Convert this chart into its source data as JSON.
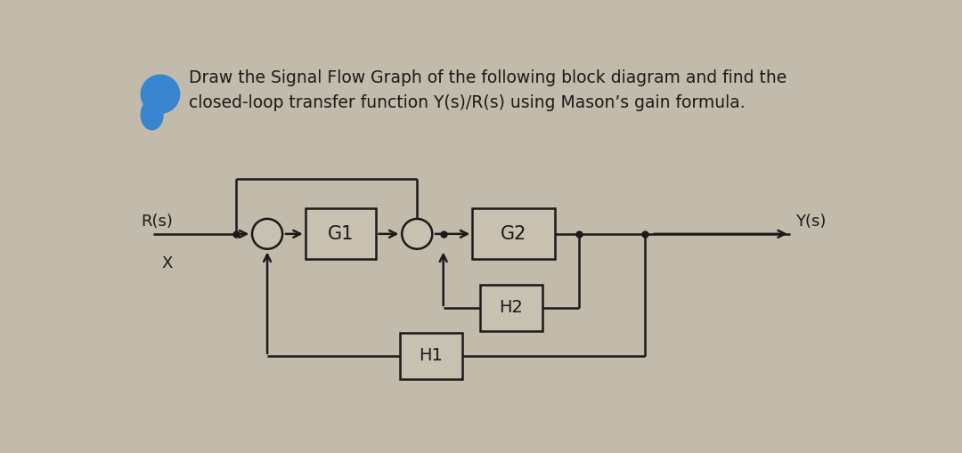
{
  "bg_color": "#c2baaa",
  "title_text": "Draw the Signal Flow Graph of the following block diagram and find the\nclosed-loop transfer function Y(s)/R(s) using Mason’s gain formula.",
  "title_fontsize": 13.5,
  "title_color": "#1a1a1a",
  "bullet_color": "#3a85d0",
  "Rs_label": "R(s)",
  "Ys_label": "Y(s)",
  "X_label": "X",
  "G1_label": "G1",
  "G2_label": "G2",
  "H1_label": "H1",
  "H2_label": "H2",
  "line_color": "#1a1a1a",
  "box_facecolor": "#c8c0b0",
  "lw": 1.8
}
